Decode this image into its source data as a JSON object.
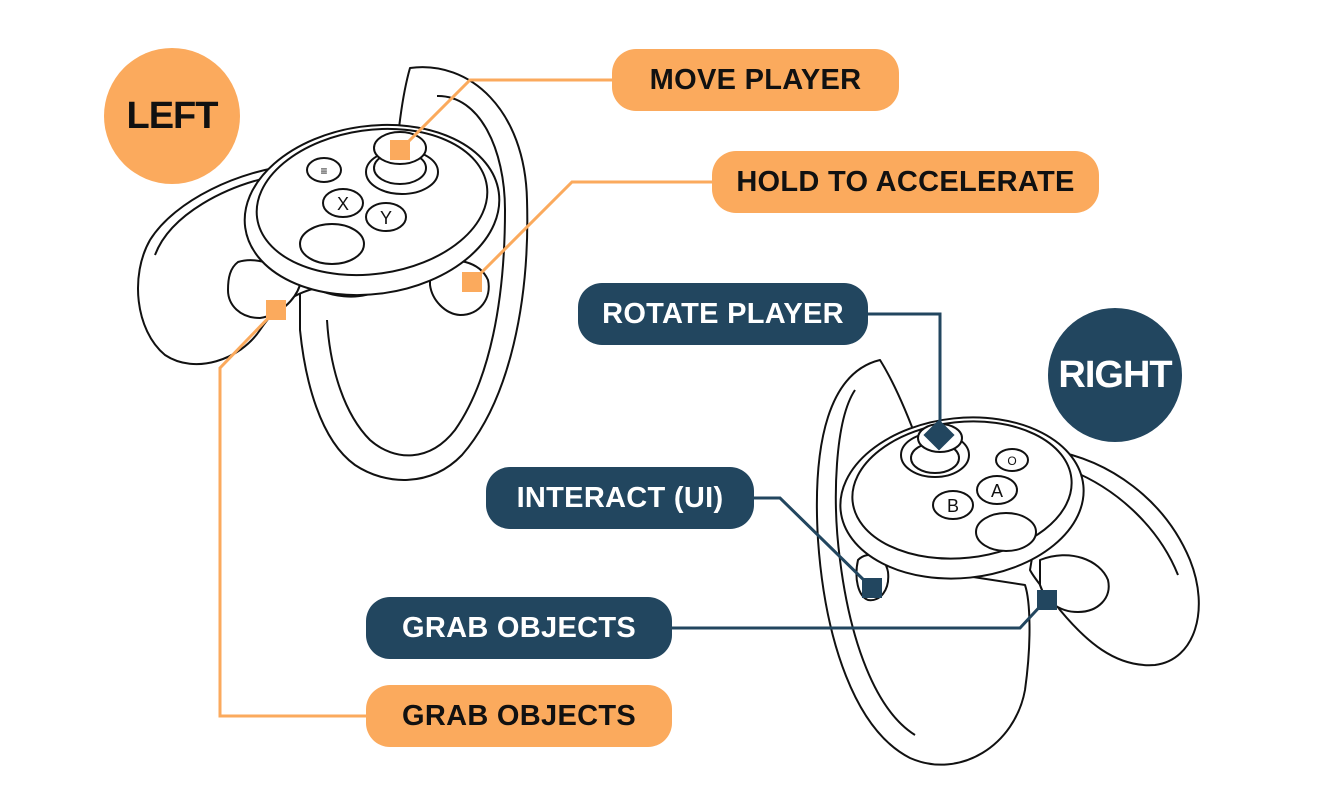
{
  "left": {
    "badge": "LEFT",
    "labels": {
      "move_player": "MOVE PLAYER",
      "hold_accelerate": "HOLD TO ACCELERATE",
      "grab_objects": "GRAB OBJECTS"
    }
  },
  "right": {
    "badge": "RIGHT",
    "labels": {
      "rotate_player": "ROTATE PLAYER",
      "interact_ui": "INTERACT (UI)",
      "grab_objects": "GRAB OBJECTS"
    }
  },
  "colors": {
    "left_accent": "#FBAA5D",
    "right_accent": "#22465F",
    "outline": "#111111"
  }
}
